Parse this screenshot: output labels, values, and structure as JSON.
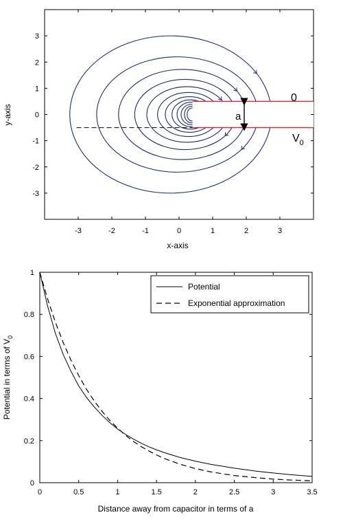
{
  "chart_data": [
    {
      "type": "contour",
      "xlabel": "x-axis",
      "ylabel": "y-axis",
      "xlim": [
        -4,
        4
      ],
      "ylim": [
        -4,
        4
      ],
      "xticks": [
        -3,
        -2,
        -1,
        0,
        1,
        2,
        3
      ],
      "yticks": [
        -3,
        -2,
        -1,
        0,
        1,
        2,
        3
      ],
      "grid": false,
      "plate_separation_label": "a",
      "upper_plate_label": "0",
      "lower_plate_label": "V",
      "lower_plate_label_subscript": "0",
      "plates": {
        "y_upper": 0.5,
        "y_lower": -0.5,
        "x_start": 0.4,
        "x_end": 4.0
      },
      "dashed_line_y": -0.5,
      "contours": [
        {
          "cx": -0.25,
          "rx": 3.0,
          "ry": 3.0
        },
        {
          "cx": -0.05,
          "rx": 2.4,
          "ry": 2.2
        },
        {
          "cx": 0.1,
          "rx": 1.9,
          "ry": 1.72
        },
        {
          "cx": 0.18,
          "rx": 1.5,
          "ry": 1.34
        },
        {
          "cx": 0.24,
          "rx": 1.2,
          "ry": 1.06
        },
        {
          "cx": 0.28,
          "rx": 0.92,
          "ry": 0.84
        },
        {
          "cx": 0.31,
          "rx": 0.72,
          "ry": 0.68
        },
        {
          "cx": 0.34,
          "rx": 0.55,
          "ry": 0.56
        },
        {
          "cx": 0.36,
          "rx": 0.42,
          "ry": 0.47
        },
        {
          "cx": 0.37,
          "rx": 0.31,
          "ry": 0.39
        },
        {
          "cx": 0.38,
          "rx": 0.22,
          "ry": 0.32
        },
        {
          "cx": 0.39,
          "rx": 0.15,
          "ry": 0.25
        }
      ],
      "colors": {
        "contour": "#1c2a78",
        "plate": "#d7262e",
        "frame": "#000000"
      }
    },
    {
      "type": "line",
      "xlabel": "Distance away from capacitor in terms of a",
      "ylabel": "Potential in terms of V",
      "ylabel_subscript": "0",
      "xlim": [
        0,
        3.5
      ],
      "ylim": [
        0,
        1
      ],
      "xticks": [
        "0",
        "0.5",
        "1",
        "1.5",
        "2",
        "2.5",
        "3",
        "3.5"
      ],
      "yticks": [
        "0",
        "0.2",
        "0.4",
        "0.6",
        "0.8",
        "1"
      ],
      "grid": false,
      "legend": "top-right",
      "series": [
        {
          "name": "Potential",
          "style": "solid",
          "x": [
            0,
            0.1,
            0.2,
            0.3,
            0.4,
            0.5,
            0.6,
            0.7,
            0.8,
            0.9,
            1.0,
            1.1,
            1.2,
            1.3,
            1.4,
            1.5,
            1.6,
            1.8,
            2.0,
            2.2,
            2.5,
            2.8,
            3.0,
            3.2,
            3.5
          ],
          "y": [
            1.0,
            0.84,
            0.71,
            0.61,
            0.53,
            0.46,
            0.405,
            0.36,
            0.32,
            0.285,
            0.255,
            0.23,
            0.208,
            0.188,
            0.171,
            0.156,
            0.143,
            0.12,
            0.102,
            0.087,
            0.069,
            0.054,
            0.046,
            0.039,
            0.03
          ]
        },
        {
          "name": "Exponential approximation",
          "style": "dashed",
          "x": [
            0,
            0.1,
            0.2,
            0.3,
            0.4,
            0.5,
            0.6,
            0.7,
            0.8,
            0.9,
            1.0,
            1.1,
            1.2,
            1.3,
            1.4,
            1.5,
            1.6,
            1.8,
            2.0,
            2.2,
            2.5,
            2.8,
            3.0,
            3.2,
            3.5
          ],
          "y": [
            1.0,
            0.874,
            0.763,
            0.667,
            0.582,
            0.509,
            0.444,
            0.388,
            0.339,
            0.296,
            0.259,
            0.226,
            0.197,
            0.172,
            0.151,
            0.132,
            0.115,
            0.088,
            0.067,
            0.051,
            0.034,
            0.023,
            0.017,
            0.013,
            0.009
          ]
        }
      ]
    }
  ]
}
